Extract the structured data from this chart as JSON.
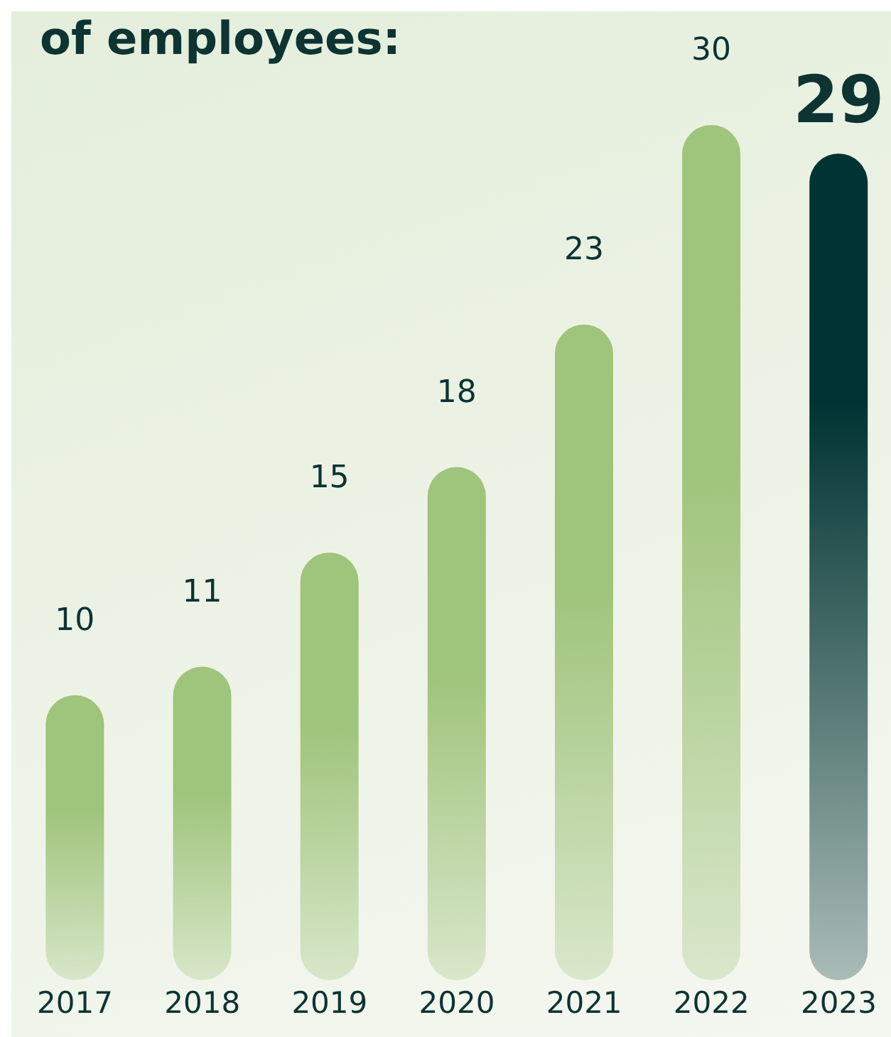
{
  "chart_data": {
    "type": "bar",
    "title": "of employees:",
    "categories": [
      "2017",
      "2018",
      "2019",
      "2020",
      "2021",
      "2022",
      "2023"
    ],
    "values": [
      10,
      11,
      15,
      18,
      23,
      30,
      29
    ],
    "colors": [
      "#9fc47b",
      "#9fc47b",
      "#9fc47b",
      "#9fc47b",
      "#9fc47b",
      "#9fc47b",
      "#003333"
    ],
    "data_labels": true,
    "grid": false,
    "legend": false
  }
}
